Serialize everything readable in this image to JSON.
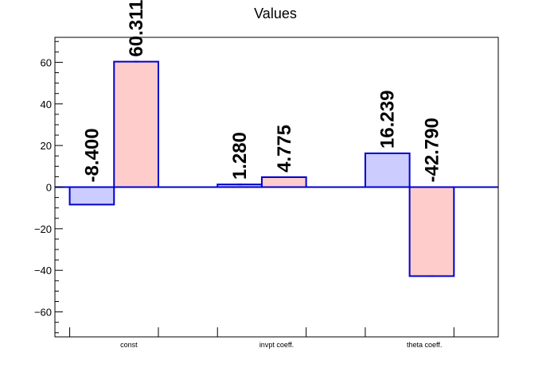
{
  "chart_data": {
    "type": "bar",
    "title": "Values",
    "categories": [
      "const",
      "invpt coeff.",
      "theta coeff."
    ],
    "series": [
      {
        "values": [
          -8.4,
          1.28,
          16.239
        ],
        "value_labels": [
          "-8.400",
          "1.280",
          "16.239"
        ],
        "color": "#ccccff"
      },
      {
        "values": [
          60.311,
          4.775,
          -42.79
        ],
        "value_labels": [
          "60.311",
          "4.775",
          "-42.790"
        ],
        "color": "#ffcccc"
      }
    ],
    "bar_edge_color": "#0000cc",
    "ylim": [
      -72,
      72
    ],
    "yticks": [
      -60,
      -40,
      -20,
      0,
      20,
      40,
      60
    ],
    "ytick_labels": [
      "−60",
      "−40",
      "−20",
      "0",
      "20",
      "40",
      "60"
    ],
    "xlabel": "",
    "ylabel": "",
    "grid": false
  }
}
